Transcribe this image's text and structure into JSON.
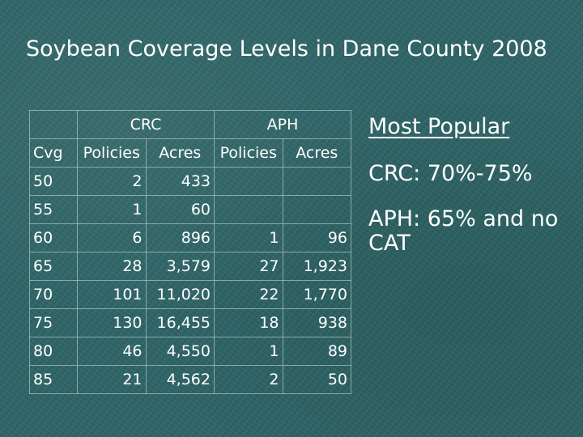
{
  "slide": {
    "title": "Soybean Coverage Levels in Dane County 2008"
  },
  "table": {
    "group_headers": {
      "crc": "CRC",
      "aph": "APH"
    },
    "column_labels": {
      "cvg": "Cvg",
      "crc_policies": "Policies",
      "crc_acres": "Acres",
      "aph_policies": "Policies",
      "aph_acres": "Acres"
    },
    "rows": [
      {
        "cvg": "50",
        "crc_policies": "2",
        "crc_acres": "433",
        "aph_policies": "",
        "aph_acres": ""
      },
      {
        "cvg": "55",
        "crc_policies": "1",
        "crc_acres": "60",
        "aph_policies": "",
        "aph_acres": ""
      },
      {
        "cvg": "60",
        "crc_policies": "6",
        "crc_acres": "896",
        "aph_policies": "1",
        "aph_acres": "96"
      },
      {
        "cvg": "65",
        "crc_policies": "28",
        "crc_acres": "3,579",
        "aph_policies": "27",
        "aph_acres": "1,923"
      },
      {
        "cvg": "70",
        "crc_policies": "101",
        "crc_acres": "11,020",
        "aph_policies": "22",
        "aph_acres": "1,770"
      },
      {
        "cvg": "75",
        "crc_policies": "130",
        "crc_acres": "16,455",
        "aph_policies": "18",
        "aph_acres": "938"
      },
      {
        "cvg": "80",
        "crc_policies": "46",
        "crc_acres": "4,550",
        "aph_policies": "1",
        "aph_acres": "89"
      },
      {
        "cvg": "85",
        "crc_policies": "21",
        "crc_acres": "4,562",
        "aph_policies": "2",
        "aph_acres": "50"
      }
    ]
  },
  "sidebar": {
    "heading": "Most Popular",
    "crc_text": "CRC: 70%-75%",
    "aph_text": "APH: 65% and no CAT"
  },
  "colors": {
    "background": "#2e6466",
    "text": "#ffffff",
    "grid_line": "#afc8c6"
  }
}
